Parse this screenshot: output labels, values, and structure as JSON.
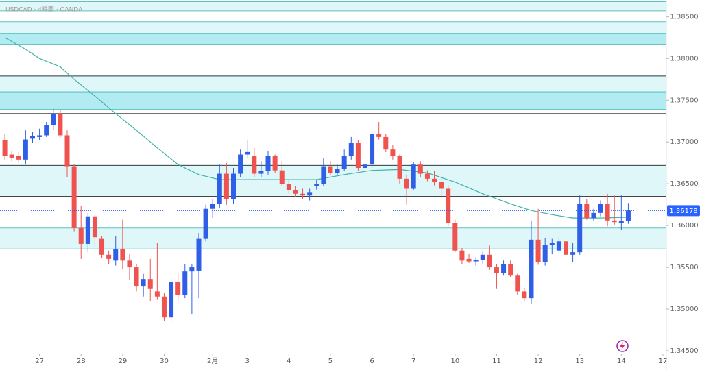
{
  "chart_data": {
    "type": "candlestick",
    "title": "USDCAD · 4時間 · OANDA",
    "up_color": "#2f5fe6",
    "down_color": "#ef5350",
    "open": [
      1.3702,
      1.3685,
      1.3683,
      1.3679,
      1.3704,
      1.3706,
      1.3708,
      1.372,
      1.3734,
      1.3708,
      1.3671,
      1.3597,
      1.3578,
      1.3611,
      1.3584,
      1.3565,
      1.3558,
      1.3572,
      1.3558,
      1.355,
      1.3527,
      1.3536,
      1.3521,
      1.3515,
      1.349,
      1.3532,
      1.3517,
      1.3545,
      1.3546,
      1.3584,
      1.362,
      1.3626,
      1.3662,
      1.3632,
      1.3662,
      1.3685,
      1.3683,
      1.3662,
      1.3665,
      1.3683,
      1.3666,
      1.365,
      1.3642,
      1.3638,
      1.3636,
      1.3647,
      1.365,
      1.3671,
      1.3663,
      1.3668,
      1.3683,
      1.3699,
      1.3669,
      1.3673,
      1.371,
      1.3706,
      1.3691,
      1.3683,
      1.3656,
      1.3644,
      1.3673,
      1.3662,
      1.3656,
      1.3652,
      1.3644,
      1.3603,
      1.357,
      1.356,
      1.3557,
      1.3559,
      1.3565,
      1.355,
      1.3543,
      1.3554,
      1.354,
      1.3521,
      1.3513,
      1.3583,
      1.3556,
      1.3577,
      1.357,
      1.3581,
      1.3565,
      1.3568,
      1.3626,
      1.3609,
      1.3615,
      1.3626,
      1.3606,
      1.3603,
      1.3605
    ],
    "high": [
      1.371,
      1.3689,
      1.3688,
      1.3714,
      1.3712,
      1.3716,
      1.3724,
      1.374,
      1.3738,
      1.3714,
      1.3673,
      1.3624,
      1.3615,
      1.3615,
      1.3587,
      1.357,
      1.3587,
      1.3607,
      1.3566,
      1.3554,
      1.3542,
      1.356,
      1.3579,
      1.3519,
      1.3538,
      1.3543,
      1.3554,
      1.3554,
      1.3591,
      1.3625,
      1.3632,
      1.3673,
      1.3675,
      1.3669,
      1.3691,
      1.3702,
      1.3693,
      1.3677,
      1.3689,
      1.3685,
      1.3677,
      1.3655,
      1.3647,
      1.3644,
      1.3644,
      1.3655,
      1.3681,
      1.3677,
      1.3673,
      1.3691,
      1.3706,
      1.3702,
      1.3679,
      1.3714,
      1.3724,
      1.371,
      1.3696,
      1.3685,
      1.3661,
      1.3676,
      1.3677,
      1.3666,
      1.3665,
      1.3658,
      1.3648,
      1.3607,
      1.3573,
      1.3566,
      1.3562,
      1.357,
      1.3576,
      1.3554,
      1.3558,
      1.3558,
      1.3542,
      1.3525,
      1.3606,
      1.362,
      1.3585,
      1.3584,
      1.3586,
      1.3595,
      1.3579,
      1.3636,
      1.3632,
      1.362,
      1.363,
      1.3638,
      1.3636,
      1.3636,
      1.3627
    ],
    "low": [
      1.3679,
      1.3677,
      1.3675,
      1.3673,
      1.3699,
      1.3702,
      1.3706,
      1.3714,
      1.3706,
      1.3658,
      1.3593,
      1.356,
      1.3568,
      1.3574,
      1.3561,
      1.3554,
      1.3552,
      1.3548,
      1.3535,
      1.3521,
      1.3515,
      1.3509,
      1.3511,
      1.3486,
      1.3484,
      1.3509,
      1.3513,
      1.3494,
      1.3513,
      1.3581,
      1.3609,
      1.3621,
      1.3625,
      1.3626,
      1.3658,
      1.3681,
      1.3658,
      1.3658,
      1.3661,
      1.3663,
      1.3647,
      1.3638,
      1.3634,
      1.3632,
      1.363,
      1.3643,
      1.3647,
      1.366,
      1.3661,
      1.3665,
      1.3679,
      1.3665,
      1.3655,
      1.3669,
      1.3703,
      1.3688,
      1.3679,
      1.365,
      1.3625,
      1.3642,
      1.3658,
      1.3653,
      1.3648,
      1.3634,
      1.3599,
      1.3568,
      1.3554,
      1.3555,
      1.3552,
      1.3554,
      1.3547,
      1.3524,
      1.354,
      1.3538,
      1.3517,
      1.3509,
      1.3506,
      1.3553,
      1.3552,
      1.3566,
      1.3566,
      1.356,
      1.3556,
      1.3565,
      1.3607,
      1.3606,
      1.3611,
      1.3599,
      1.3601,
      1.3595,
      1.3602
    ],
    "close": [
      1.3683,
      1.3681,
      1.3679,
      1.3703,
      1.3707,
      1.3708,
      1.372,
      1.3734,
      1.3708,
      1.3671,
      1.3597,
      1.3578,
      1.3611,
      1.3586,
      1.3565,
      1.356,
      1.3572,
      1.3558,
      1.355,
      1.3527,
      1.3536,
      1.3524,
      1.3515,
      1.349,
      1.3532,
      1.3517,
      1.3545,
      1.355,
      1.3584,
      1.362,
      1.3626,
      1.3662,
      1.3632,
      1.3662,
      1.3685,
      1.3688,
      1.3662,
      1.3665,
      1.3683,
      1.3666,
      1.365,
      1.3642,
      1.3638,
      1.3636,
      1.364,
      1.365,
      1.3671,
      1.3663,
      1.3668,
      1.3683,
      1.3699,
      1.3669,
      1.3673,
      1.371,
      1.3706,
      1.3691,
      1.3683,
      1.3656,
      1.3644,
      1.3673,
      1.3662,
      1.3656,
      1.3652,
      1.3644,
      1.3603,
      1.357,
      1.3558,
      1.3557,
      1.3559,
      1.3565,
      1.355,
      1.3543,
      1.3554,
      1.354,
      1.3521,
      1.3513,
      1.3583,
      1.3556,
      1.3577,
      1.3579,
      1.3581,
      1.3565,
      1.3568,
      1.3626,
      1.3609,
      1.3615,
      1.3626,
      1.3606,
      1.3604,
      1.3605,
      1.36178
    ],
    "ma": {
      "color": "#3cb3a8",
      "x": [
        0,
        3,
        5,
        8,
        10,
        13,
        16,
        19,
        22,
        25,
        28,
        31,
        35,
        41,
        45,
        49,
        53,
        57,
        61,
        65,
        69,
        73,
        76,
        79,
        82,
        86,
        90
      ],
      "values": [
        1.3825,
        1.3811,
        1.38,
        1.379,
        1.3775,
        1.3755,
        1.3734,
        1.3714,
        1.3693,
        1.3673,
        1.3661,
        1.3655,
        1.3655,
        1.3655,
        1.3655,
        1.3661,
        1.3666,
        1.3667,
        1.3663,
        1.3652,
        1.3638,
        1.3626,
        1.3618,
        1.3613,
        1.3609,
        1.3609,
        1.361
      ]
    },
    "zones": [
      {
        "low": 1.3857,
        "high": 1.3868,
        "color": "#e0f7fa"
      },
      {
        "low": 1.383,
        "high": 1.3844,
        "color": "#e0f7fa"
      },
      {
        "low": 1.3817,
        "high": 1.383,
        "color": "#b2ebf2"
      },
      {
        "low": 1.376,
        "high": 1.3779,
        "color": "#e0f7fa"
      },
      {
        "low": 1.3739,
        "high": 1.376,
        "color": "#b2ebf2"
      },
      {
        "low": 1.3635,
        "high": 1.3672,
        "color": "#e0f7fa"
      },
      {
        "low": 1.3572,
        "high": 1.3597,
        "color": "#e0f7fa"
      }
    ],
    "zone_edge_color": "#5cc2bd",
    "hlines": {
      "color": "#444444",
      "values": [
        1.3779,
        1.3734,
        1.3672,
        1.3635
      ]
    },
    "last_price": 1.36178,
    "last_price_color": "#2962ff",
    "ylim": [
      1.3427,
      1.387
    ],
    "yticks": [
      {
        "value": 1.385,
        "label": "1.38500"
      },
      {
        "value": 1.38,
        "label": "1.38000"
      },
      {
        "value": 1.375,
        "label": "1.37500"
      },
      {
        "value": 1.37,
        "label": "1.37000"
      },
      {
        "value": 1.365,
        "label": "1.36500"
      },
      {
        "value": 1.36,
        "label": "1.36000"
      },
      {
        "value": 1.355,
        "label": "1.35500"
      },
      {
        "value": 1.35,
        "label": "1.35000"
      },
      {
        "value": 1.345,
        "label": "1.34500"
      }
    ],
    "xlim": [
      -0.7,
      95.5
    ],
    "xticks": [
      {
        "value": 5,
        "label": "27"
      },
      {
        "value": 11,
        "label": "28"
      },
      {
        "value": 17,
        "label": "29"
      },
      {
        "value": 23,
        "label": "30"
      },
      {
        "value": 30,
        "label": "2月"
      },
      {
        "value": 35,
        "label": "3"
      },
      {
        "value": 41,
        "label": "4"
      },
      {
        "value": 47,
        "label": "5"
      },
      {
        "value": 53,
        "label": "6"
      },
      {
        "value": 59,
        "label": "7"
      },
      {
        "value": 65,
        "label": "10"
      },
      {
        "value": 71,
        "label": "11"
      },
      {
        "value": 77,
        "label": "12"
      },
      {
        "value": 83,
        "label": "13"
      },
      {
        "value": 89,
        "label": "14"
      },
      {
        "value": 95,
        "label": "17"
      }
    ]
  }
}
